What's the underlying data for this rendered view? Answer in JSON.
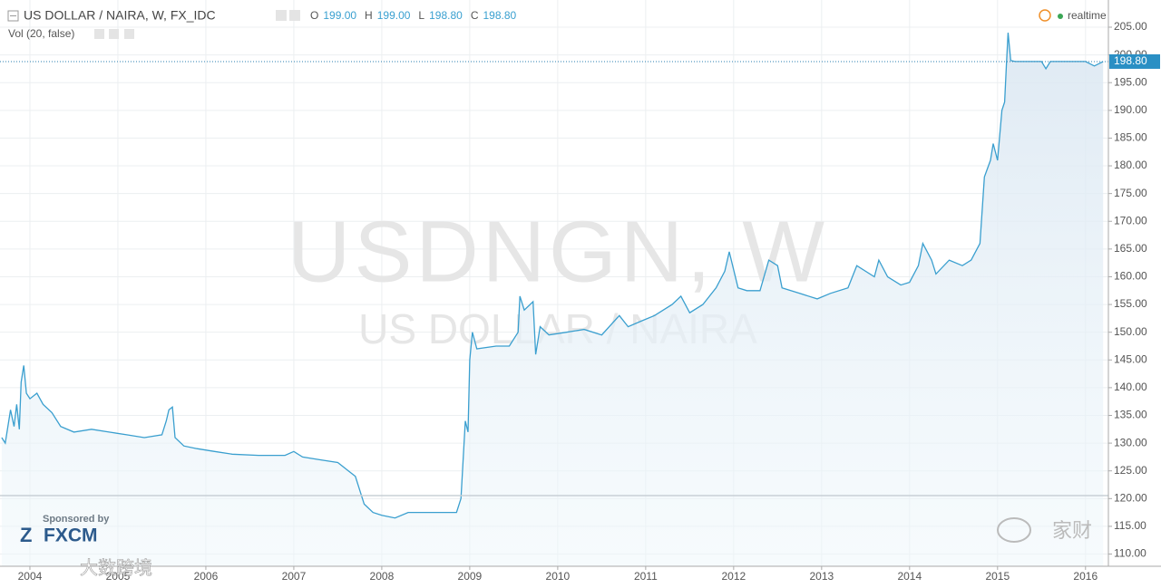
{
  "chart_data": {
    "type": "area",
    "title": "US DOLLAR / NAIRA, W, FX_IDC",
    "ohlc": [
      {
        "label": "O",
        "value": 199.0,
        "value_label": "199.00"
      },
      {
        "label": "H",
        "value": 199.0,
        "value_label": "199.00"
      },
      {
        "label": "L",
        "value": 198.8,
        "value_label": "198.80"
      },
      {
        "label": "C",
        "value": 198.8,
        "value_label": "198.80"
      }
    ],
    "indicator": "Vol (20, false)",
    "status": "realtime",
    "watermark": "USDNGN, W",
    "watermark_subtitle": "US DOLLAR / NAIRA",
    "sponsor_text": "Sponsored by",
    "sponsor": "FXCM",
    "overlay_texts": [
      "大数跨境",
      "家财"
    ],
    "last_price": {
      "value": 198.8,
      "label": "198.80"
    },
    "color": "#3a9fcf",
    "x": [
      2003.68,
      2003.72,
      2003.78,
      2003.82,
      2003.85,
      2003.88,
      2003.9,
      2003.93,
      2003.96,
      2004.0,
      2004.08,
      2004.15,
      2004.25,
      2004.35,
      2004.5,
      2004.7,
      2004.9,
      2005.1,
      2005.3,
      2005.5,
      2005.55,
      2005.58,
      2005.62,
      2005.65,
      2005.75,
      2005.9,
      2006.1,
      2006.3,
      2006.6,
      2006.9,
      2007.0,
      2007.1,
      2007.3,
      2007.5,
      2007.7,
      2007.8,
      2007.9,
      2008.0,
      2008.15,
      2008.3,
      2008.6,
      2008.85,
      2008.9,
      2008.95,
      2008.98,
      2009.0,
      2009.03,
      2009.08,
      2009.3,
      2009.45,
      2009.55,
      2009.57,
      2009.62,
      2009.72,
      2009.75,
      2009.8,
      2009.9,
      2010.1,
      2010.3,
      2010.5,
      2010.7,
      2010.8,
      2010.95,
      2011.1,
      2011.3,
      2011.4,
      2011.5,
      2011.65,
      2011.8,
      2011.9,
      2011.95,
      2012.05,
      2012.15,
      2012.3,
      2012.4,
      2012.5,
      2012.55,
      2012.75,
      2012.95,
      2013.1,
      2013.3,
      2013.4,
      2013.6,
      2013.65,
      2013.75,
      2013.9,
      2014.0,
      2014.1,
      2014.15,
      2014.25,
      2014.3,
      2014.45,
      2014.6,
      2014.7,
      2014.8,
      2014.85,
      2014.92,
      2014.95,
      2015.0,
      2015.05,
      2015.08,
      2015.1,
      2015.12,
      2015.15,
      2015.2,
      2015.5,
      2015.55,
      2015.6,
      2016.0,
      2016.1,
      2016.2
    ],
    "values": [
      131,
      130,
      136,
      133,
      137,
      132.5,
      141,
      144,
      139,
      138,
      139,
      137,
      135.5,
      133,
      132,
      132.5,
      132,
      131.5,
      131,
      131.5,
      134,
      136,
      136.5,
      131,
      129.5,
      129,
      128.5,
      128,
      127.8,
      127.8,
      128.5,
      127.5,
      127,
      126.5,
      124,
      119,
      117.5,
      117,
      116.5,
      117.5,
      117.5,
      117.5,
      120,
      134,
      132,
      145,
      150,
      147,
      147.5,
      147.5,
      150,
      156.5,
      154,
      155.5,
      146,
      151,
      149.5,
      150,
      150.5,
      149.5,
      153,
      151,
      152,
      153,
      155,
      156.5,
      153.5,
      155,
      158,
      161,
      164.5,
      158,
      157.5,
      157.5,
      163,
      162,
      158,
      157,
      156,
      157,
      158,
      162,
      160,
      163,
      160,
      158.5,
      159,
      162,
      166,
      163,
      160.5,
      163,
      162,
      163,
      166,
      178,
      181,
      184,
      181,
      190,
      191.5,
      198,
      204,
      199,
      198.8,
      198.8,
      197.5,
      198.8,
      198.8,
      198,
      198.8
    ],
    "xlim": [
      2003.66,
      2016.26
    ],
    "ylim": [
      107.8,
      209.9
    ],
    "xticks": [
      2004,
      2005,
      2006,
      2007,
      2008,
      2009,
      2010,
      2011,
      2012,
      2013,
      2014,
      2015,
      2016
    ],
    "yticks": [
      {
        "value": 110,
        "label": "110.00"
      },
      {
        "value": 115,
        "label": "115.00"
      },
      {
        "value": 120,
        "label": "120.00"
      },
      {
        "value": 125,
        "label": "125.00"
      },
      {
        "value": 130,
        "label": "130.00"
      },
      {
        "value": 135,
        "label": "135.00"
      },
      {
        "value": 140,
        "label": "140.00"
      },
      {
        "value": 145,
        "label": "145.00"
      },
      {
        "value": 150,
        "label": "150.00"
      },
      {
        "value": 155,
        "label": "155.00"
      },
      {
        "value": 160,
        "label": "160.00"
      },
      {
        "value": 165,
        "label": "165.00"
      },
      {
        "value": 170,
        "label": "170.00"
      },
      {
        "value": 175,
        "label": "175.00"
      },
      {
        "value": 180,
        "label": "180.00"
      },
      {
        "value": 185,
        "label": "185.00"
      },
      {
        "value": 190,
        "label": "190.00"
      },
      {
        "value": 195,
        "label": "195.00"
      },
      {
        "value": 200,
        "label": "200.00"
      },
      {
        "value": 205,
        "label": "205.00"
      }
    ],
    "grid": true
  }
}
